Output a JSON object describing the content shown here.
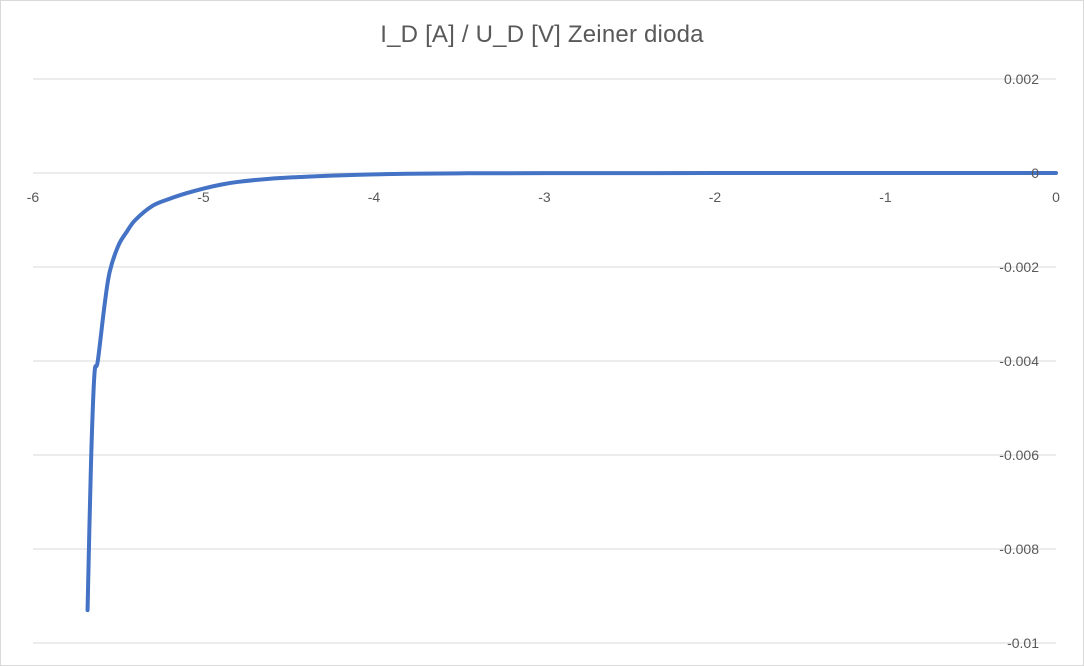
{
  "chart_data": {
    "type": "line",
    "title": "I_D [A] / U_D [V] Zeiner dioda",
    "xlabel": "",
    "ylabel": "",
    "xlim": [
      -6,
      0
    ],
    "ylim": [
      -0.01,
      0.002
    ],
    "x_ticks": [
      "-6",
      "-5",
      "-4",
      "-3",
      "-2",
      "-1",
      "0"
    ],
    "x_tick_values": [
      -6,
      -5,
      -4,
      -3,
      -2,
      -1,
      0
    ],
    "y_ticks": [
      "0.002",
      "0",
      "-0.002",
      "-0.004",
      "-0.006",
      "-0.008",
      "-0.01"
    ],
    "y_tick_values": [
      0.002,
      0,
      -0.002,
      -0.004,
      -0.006,
      -0.008,
      -0.01
    ],
    "grid": "horizontal",
    "legend": "none",
    "series": [
      {
        "color": "#4472c4",
        "x": [
          -5.68,
          -5.66,
          -5.64,
          -5.62,
          -5.58,
          -5.55,
          -5.5,
          -5.45,
          -5.4,
          -5.3,
          -5.2,
          -5.1,
          -5.0,
          -4.9,
          -4.8,
          -4.6,
          -4.4,
          -4.2,
          -4.0,
          -3.8,
          -3.5,
          -3.0,
          -2.0,
          -1.0,
          0.0
        ],
        "y": [
          -0.0093,
          -0.0062,
          -0.0043,
          -0.004,
          -0.0028,
          -0.0021,
          -0.00155,
          -0.00125,
          -0.001,
          -0.0007,
          -0.00055,
          -0.00043,
          -0.00033,
          -0.00025,
          -0.00019,
          -0.00012,
          -8e-05,
          -5e-05,
          -3e-05,
          -1.5e-05,
          -7e-06,
          -3e-06,
          -1e-06,
          0,
          0
        ]
      }
    ]
  }
}
